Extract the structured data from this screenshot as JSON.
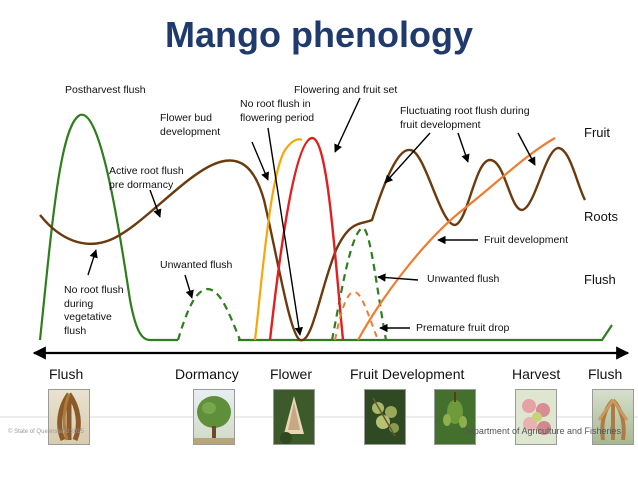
{
  "title": "Mango phenology",
  "annotations": {
    "postharvest_flush": "Postharvest flush",
    "flowering_fruit_set": "Flowering and fruit set",
    "no_root_flush_flowering": [
      "No root flush in",
      "flowering period"
    ],
    "flower_bud_development": [
      "Flower bud",
      "development"
    ],
    "fluctuating_root_flush": [
      "Fluctuating root flush during",
      "fruit development"
    ],
    "active_root_flush": [
      "Active root flush",
      "pre dormancy"
    ],
    "fruit_development": "Fruit development",
    "unwanted_flush_left": "Unwanted flush",
    "unwanted_flush_right": "Unwanted flush",
    "no_root_flush_vegetative": [
      "No root flush",
      "during",
      "vegetative",
      "flush"
    ],
    "premature_fruit_drop": "Premature fruit drop"
  },
  "curve_labels": {
    "fruit": "Fruit",
    "roots": "Roots",
    "flush": "Flush"
  },
  "stages": [
    "Flush",
    "Dormancy",
    "Flower",
    "Fruit Development",
    "Harvest",
    "Flush"
  ],
  "colors": {
    "title": "#1f3b6e",
    "flush": "#2e7d1e",
    "roots": "#6b3a0e",
    "fruit": "#ed7d31",
    "flower_bud": "#f5a80a",
    "flowering": "#e02020",
    "dashed_fruit_drop": "#ed7d31"
  },
  "footer": {
    "copyright": "© State of Queensland 2015",
    "department": "Department of Agriculture and Fisheries"
  }
}
